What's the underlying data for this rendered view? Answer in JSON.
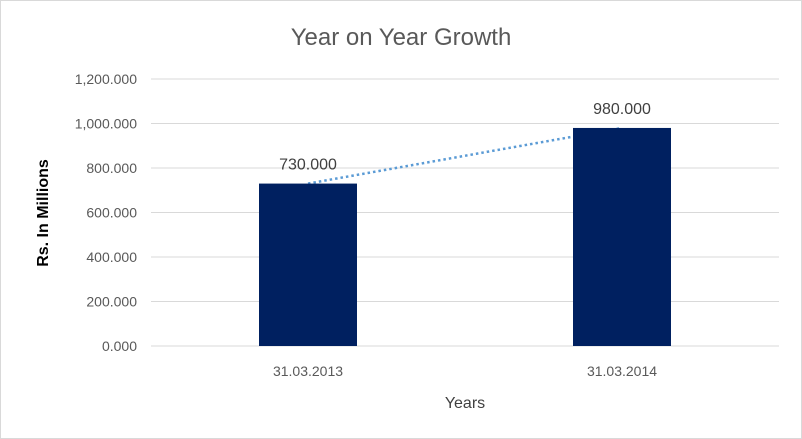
{
  "chart_data": {
    "type": "bar",
    "title": "Year on Year Growth",
    "xlabel": "Years",
    "ylabel": "Rs. In Millions",
    "categories": [
      "31.03.2013",
      "31.03.2014"
    ],
    "values": [
      730,
      980
    ],
    "data_labels": [
      "730.000",
      "980.000"
    ],
    "ylim": [
      0,
      1200
    ],
    "yticks": [
      0,
      200,
      400,
      600,
      800,
      1000,
      1200
    ],
    "ytick_labels": [
      "0.000",
      "200.000",
      "400.000",
      "600.000",
      "800.000",
      "1,000.000",
      "1,200.000"
    ],
    "grid": true,
    "legend": "none",
    "trendline": "linear-dotted",
    "colors": {
      "bar": "#002060",
      "trendline": "#5b9bd5",
      "grid": "#d9d9d9"
    }
  }
}
